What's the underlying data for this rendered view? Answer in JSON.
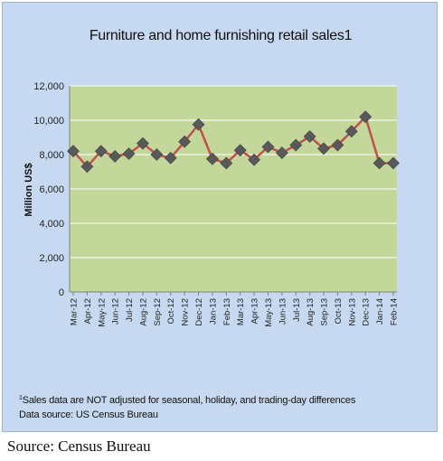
{
  "title": "Furniture and home furnishing retail sales1",
  "footnote": {
    "marker": "1",
    "line1": "Sales data are NOT adjusted for seasonal, holiday, and trading-day differences",
    "line2": "Data source: US Census Bureau"
  },
  "source": "Source: Census Bureau",
  "colors": {
    "frame_bg": "#c6d9f1",
    "plot_bg": "#c4d79b",
    "line": "#c0504d",
    "marker": "#595959",
    "grid": "#ffffff"
  },
  "chart_data": {
    "type": "line",
    "title": "Furniture and home furnishing retail sales1",
    "xlabel": "",
    "ylabel": "Million US$",
    "ylim": [
      0,
      12000
    ],
    "yticks": [
      0,
      2000,
      4000,
      6000,
      8000,
      10000,
      12000
    ],
    "ytick_labels": [
      "0",
      "2,000",
      "4,000",
      "6,000",
      "8,000",
      "10,000",
      "12,000"
    ],
    "grid": true,
    "categories": [
      "Mar-12",
      "Apr-12",
      "May-12",
      "Jun-12",
      "Jul-12",
      "Aug-12",
      "Sep-12",
      "Oct-12",
      "Nov-12",
      "Dec-12",
      "Jan-13",
      "Feb-13",
      "Mar-13",
      "Apr-13",
      "May-13",
      "Jun-13",
      "Jul-13",
      "Aug-13",
      "Sep-13",
      "Oct-13",
      "Nov-13",
      "Dec-13",
      "Jan-14",
      "Feb-14"
    ],
    "values": [
      8200,
      7300,
      8200,
      7900,
      8050,
      8650,
      8000,
      7800,
      8750,
      9750,
      7750,
      7500,
      8250,
      7700,
      8450,
      8100,
      8550,
      9050,
      8350,
      8550,
      9350,
      10200,
      7500,
      7500
    ]
  }
}
